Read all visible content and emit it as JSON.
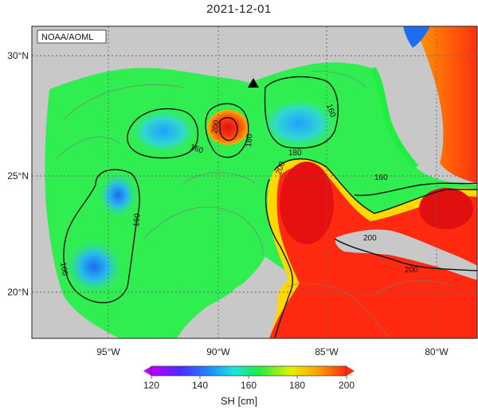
{
  "title": "2021-12-01",
  "credit": "NOAA/AOML",
  "lon_labels": [
    "95°W",
    "90°W",
    "85°W",
    "80°W"
  ],
  "lat_labels": [
    "30°N",
    "25°N",
    "20°N"
  ],
  "contour_labels": [
    "160",
    "160",
    "160",
    "160",
    "200",
    "180",
    "180",
    "200",
    "200",
    "200"
  ],
  "colorbar": {
    "ticks": [
      "120",
      "140",
      "160",
      "180",
      "200"
    ],
    "label": "SH [cm]",
    "min": 120,
    "max": 200,
    "colors": [
      "#c000ff",
      "#4a2cff",
      "#1e8cff",
      "#20e0e0",
      "#20ee40",
      "#e8f000",
      "#ff9a00",
      "#ff2a10"
    ]
  },
  "colors": {
    "land": "#c8c8c8",
    "gulf_green": "#30ee50",
    "eddy_red": "#ff2a10",
    "low_blue": "#2a9cf0"
  },
  "marker": "black triangle"
}
